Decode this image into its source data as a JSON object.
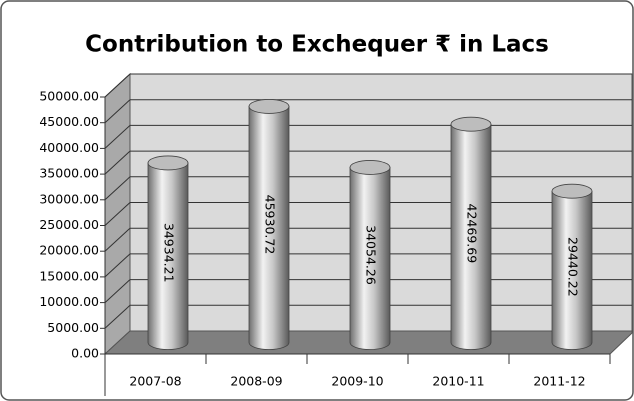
{
  "chart_data": {
    "type": "bar",
    "title": "Contribution to Exchequer ₹ in Lacs",
    "categories": [
      "2007-08",
      "2008-09",
      "2009-10",
      "2010-11",
      "2011-12"
    ],
    "values": [
      34934.21,
      45930.72,
      34054.26,
      42469.69,
      29440.22
    ],
    "ylim": [
      0,
      50000
    ],
    "yticks": [
      {
        "value": 0,
        "label": "0.00"
      },
      {
        "value": 5000,
        "label": "5000.00"
      },
      {
        "value": 10000,
        "label": "10000.00"
      },
      {
        "value": 15000,
        "label": "15000.00"
      },
      {
        "value": 20000,
        "label": "20000.00"
      },
      {
        "value": 25000,
        "label": "25000.00"
      },
      {
        "value": 30000,
        "label": "30000.00"
      },
      {
        "value": 35000,
        "label": "35000.00"
      },
      {
        "value": 40000,
        "label": "40000.00"
      },
      {
        "value": 45000,
        "label": "45000.00"
      },
      {
        "value": 50000,
        "label": "50000.00"
      }
    ],
    "grid": true,
    "color": "#9a9a9a"
  }
}
